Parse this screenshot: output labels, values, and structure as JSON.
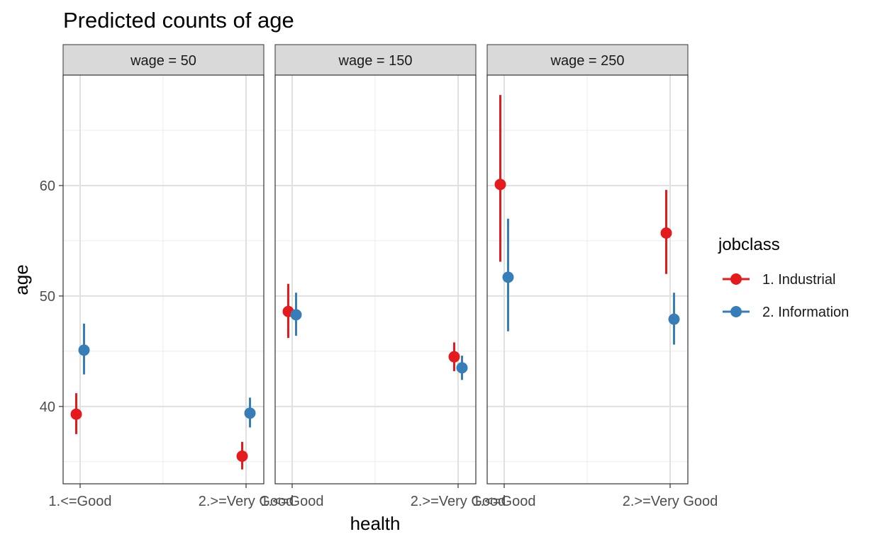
{
  "chart_data": {
    "type": "scatter",
    "title": "Predicted counts of age",
    "xlabel": "health",
    "ylabel": "age",
    "categories": [
      "1.<=Good",
      "2.>=Very Good"
    ],
    "ylim": [
      33,
      70
    ],
    "yticks": [
      40,
      50,
      60
    ],
    "grid": true,
    "legend_position": "right",
    "legend_title": "jobclass",
    "series": [
      {
        "name": "1. Industrial",
        "color": "#e41a1c"
      },
      {
        "name": "2. Information",
        "color": "#377eb8"
      }
    ],
    "facets": [
      {
        "label": "wage = 50",
        "points": [
          {
            "series": 0,
            "category": 0,
            "y": 39.3,
            "ymin": 37.5,
            "ymax": 41.2
          },
          {
            "series": 1,
            "category": 0,
            "y": 45.1,
            "ymin": 42.9,
            "ymax": 47.5
          },
          {
            "series": 0,
            "category": 1,
            "y": 35.5,
            "ymin": 34.3,
            "ymax": 36.8
          },
          {
            "series": 1,
            "category": 1,
            "y": 39.4,
            "ymin": 38.1,
            "ymax": 40.8
          }
        ]
      },
      {
        "label": "wage = 150",
        "points": [
          {
            "series": 0,
            "category": 0,
            "y": 48.6,
            "ymin": 46.2,
            "ymax": 51.1
          },
          {
            "series": 1,
            "category": 0,
            "y": 48.3,
            "ymin": 46.4,
            "ymax": 50.3
          },
          {
            "series": 0,
            "category": 1,
            "y": 44.5,
            "ymin": 43.2,
            "ymax": 45.8
          },
          {
            "series": 1,
            "category": 1,
            "y": 43.5,
            "ymin": 42.4,
            "ymax": 44.6
          }
        ]
      },
      {
        "label": "wage = 250",
        "points": [
          {
            "series": 0,
            "category": 0,
            "y": 60.1,
            "ymin": 53.1,
            "ymax": 68.2
          },
          {
            "series": 1,
            "category": 0,
            "y": 51.7,
            "ymin": 46.8,
            "ymax": 57.0
          },
          {
            "series": 0,
            "category": 1,
            "y": 55.7,
            "ymin": 52.0,
            "ymax": 59.6
          },
          {
            "series": 1,
            "category": 1,
            "y": 47.9,
            "ymin": 45.6,
            "ymax": 50.3
          }
        ]
      }
    ]
  }
}
